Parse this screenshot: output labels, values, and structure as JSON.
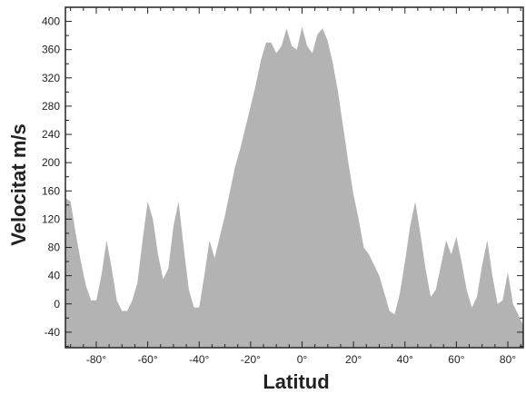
{
  "chart_data": {
    "type": "area",
    "xlabel": "Latitud",
    "ylabel": "Velocitat m/s",
    "xlim": [
      -92,
      86
    ],
    "ylim": [
      -62,
      420
    ],
    "x_ticks": [
      -80,
      -60,
      -40,
      -20,
      0,
      20,
      40,
      60,
      80
    ],
    "x_tick_labels": [
      "-80°",
      "-60°",
      "-40°",
      "-20°",
      "0°",
      "20°",
      "40°",
      "60°",
      "80°"
    ],
    "y_ticks": [
      -40,
      0,
      40,
      80,
      120,
      160,
      200,
      240,
      280,
      320,
      360,
      400
    ],
    "y_tick_labels": [
      "-40",
      "0",
      "40",
      "80",
      "120",
      "160",
      "200",
      "240",
      "280",
      "320",
      "360",
      "400"
    ],
    "grid": false,
    "legend": "none",
    "fill_color": "#b3b3b3",
    "series": [
      {
        "x": [
          -92,
          -90,
          -88,
          -86,
          -84,
          -82,
          -80,
          -78,
          -76,
          -74,
          -72,
          -70,
          -68,
          -66,
          -64,
          -62,
          -60,
          -58,
          -56,
          -54,
          -52,
          -50,
          -48,
          -46,
          -44,
          -42,
          -40,
          -38,
          -36,
          -34,
          -32,
          -30,
          -28,
          -26,
          -24,
          -22,
          -20,
          -18,
          -16,
          -14,
          -12,
          -10,
          -8,
          -6,
          -4,
          -2,
          0,
          2,
          4,
          6,
          8,
          10,
          12,
          14,
          16,
          18,
          20,
          22,
          24,
          26,
          28,
          30,
          32,
          34,
          36,
          38,
          40,
          42,
          44,
          46,
          48,
          50,
          52,
          54,
          56,
          58,
          60,
          62,
          64,
          66,
          68,
          70,
          72,
          74,
          76,
          78,
          80,
          82,
          84,
          86
        ],
        "y": [
          150,
          145,
          100,
          60,
          25,
          5,
          5,
          40,
          90,
          50,
          5,
          -10,
          -10,
          5,
          30,
          90,
          145,
          120,
          70,
          35,
          50,
          110,
          145,
          80,
          20,
          -5,
          -5,
          40,
          90,
          65,
          95,
          125,
          160,
          195,
          220,
          250,
          280,
          310,
          345,
          370,
          370,
          355,
          365,
          390,
          365,
          360,
          392,
          365,
          355,
          382,
          390,
          372,
          340,
          300,
          250,
          200,
          155,
          120,
          80,
          70,
          55,
          40,
          15,
          -10,
          -15,
          15,
          60,
          110,
          145,
          100,
          50,
          10,
          20,
          55,
          90,
          70,
          95,
          60,
          20,
          -5,
          10,
          55,
          90,
          40,
          0,
          5,
          45,
          0,
          -15,
          -30
        ]
      }
    ]
  }
}
